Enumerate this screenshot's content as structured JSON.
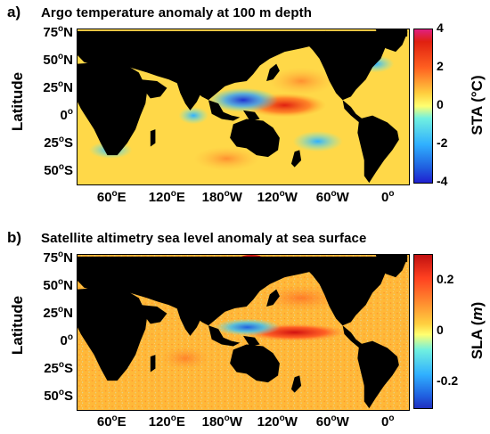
{
  "panel_a": {
    "label": "a)",
    "title": "Argo temperature anomaly at 100 m depth",
    "ylabel": "Latitude",
    "colorbar_label": "STA (°C)",
    "colorbar_ticks": [
      "4",
      "2",
      "0",
      "-2",
      "-4"
    ],
    "colorbar_range": [
      -4,
      4
    ]
  },
  "panel_b": {
    "label": "b)",
    "title": "Satellite altimetry sea level anomaly at sea surface",
    "ylabel": "Latitude",
    "colorbar_label_main": "SLA (",
    "colorbar_label_unit": "m",
    "colorbar_label_end": ")",
    "colorbar_ticks": [
      "0.2",
      "0",
      "-0.2"
    ],
    "colorbar_range": [
      -0.3,
      0.3
    ]
  },
  "lat_ticks": [
    {
      "deg": "75",
      "dir": "N"
    },
    {
      "deg": "50",
      "dir": "N"
    },
    {
      "deg": "25",
      "dir": "N"
    },
    {
      "deg": "0",
      "dir": ""
    },
    {
      "deg": "25",
      "dir": "S"
    },
    {
      "deg": "50",
      "dir": "S"
    }
  ],
  "lon_ticks": [
    {
      "deg": "60",
      "dir": "E"
    },
    {
      "deg": "120",
      "dir": "E"
    },
    {
      "deg": "180",
      "dir": "W"
    },
    {
      "deg": "120",
      "dir": "W"
    },
    {
      "deg": "60",
      "dir": "W"
    },
    {
      "deg": "0",
      "dir": ""
    }
  ],
  "colors": {
    "land": "#000000",
    "colormap": [
      "#2020d0",
      "#30a0ff",
      "#40e0f0",
      "#ffff70",
      "#ffd040",
      "#ff8020",
      "#e02010"
    ],
    "sla_colormap": [
      "#2020d0",
      "#30a0ff",
      "#40e0f0",
      "#ffff70",
      "#ffd040",
      "#ff8020",
      "#e02010"
    ]
  }
}
